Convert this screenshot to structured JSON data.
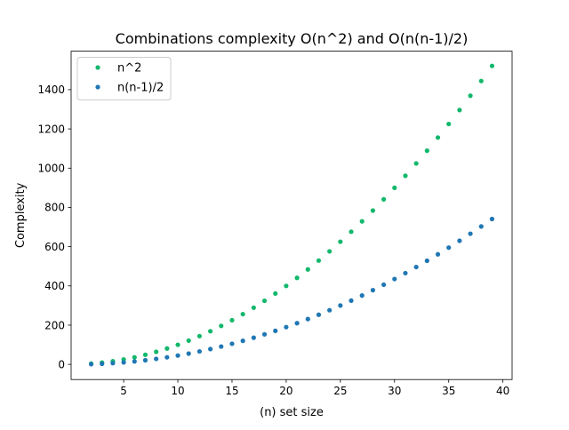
{
  "chart_data": {
    "type": "scatter",
    "title": "Combinations complexity O(n^2) and O(n(n-1)/2)",
    "xlabel": "(n) set size",
    "ylabel": "Complexity",
    "xlim": [
      0.15,
      40.85
    ],
    "ylim": [
      -77.25,
      1596.15
    ],
    "xticks": [
      5,
      10,
      15,
      20,
      25,
      30,
      35,
      40
    ],
    "yticks": [
      0,
      200,
      400,
      600,
      800,
      1000,
      1200,
      1400
    ],
    "grid": false,
    "legend_position": "top-left",
    "x": [
      2,
      3,
      4,
      5,
      6,
      7,
      8,
      9,
      10,
      11,
      12,
      13,
      14,
      15,
      16,
      17,
      18,
      19,
      20,
      21,
      22,
      23,
      24,
      25,
      26,
      27,
      28,
      29,
      30,
      31,
      32,
      33,
      34,
      35,
      36,
      37,
      38,
      39
    ],
    "series": [
      {
        "name": "n^2",
        "color": "#13b86b",
        "values": [
          4,
          9,
          16,
          25,
          36,
          49,
          64,
          81,
          100,
          121,
          144,
          169,
          196,
          225,
          256,
          289,
          324,
          361,
          400,
          441,
          484,
          529,
          576,
          625,
          676,
          729,
          784,
          841,
          900,
          961,
          1024,
          1089,
          1156,
          1225,
          1296,
          1369,
          1444,
          1521
        ]
      },
      {
        "name": "n(n-1)/2",
        "color": "#1f77b4",
        "values": [
          1,
          3,
          6,
          10,
          15,
          21,
          28,
          36,
          45,
          55,
          66,
          78,
          91,
          105,
          120,
          136,
          153,
          171,
          190,
          210,
          231,
          253,
          276,
          300,
          325,
          351,
          378,
          406,
          435,
          465,
          496,
          528,
          561,
          595,
          630,
          666,
          703,
          741
        ]
      }
    ]
  }
}
